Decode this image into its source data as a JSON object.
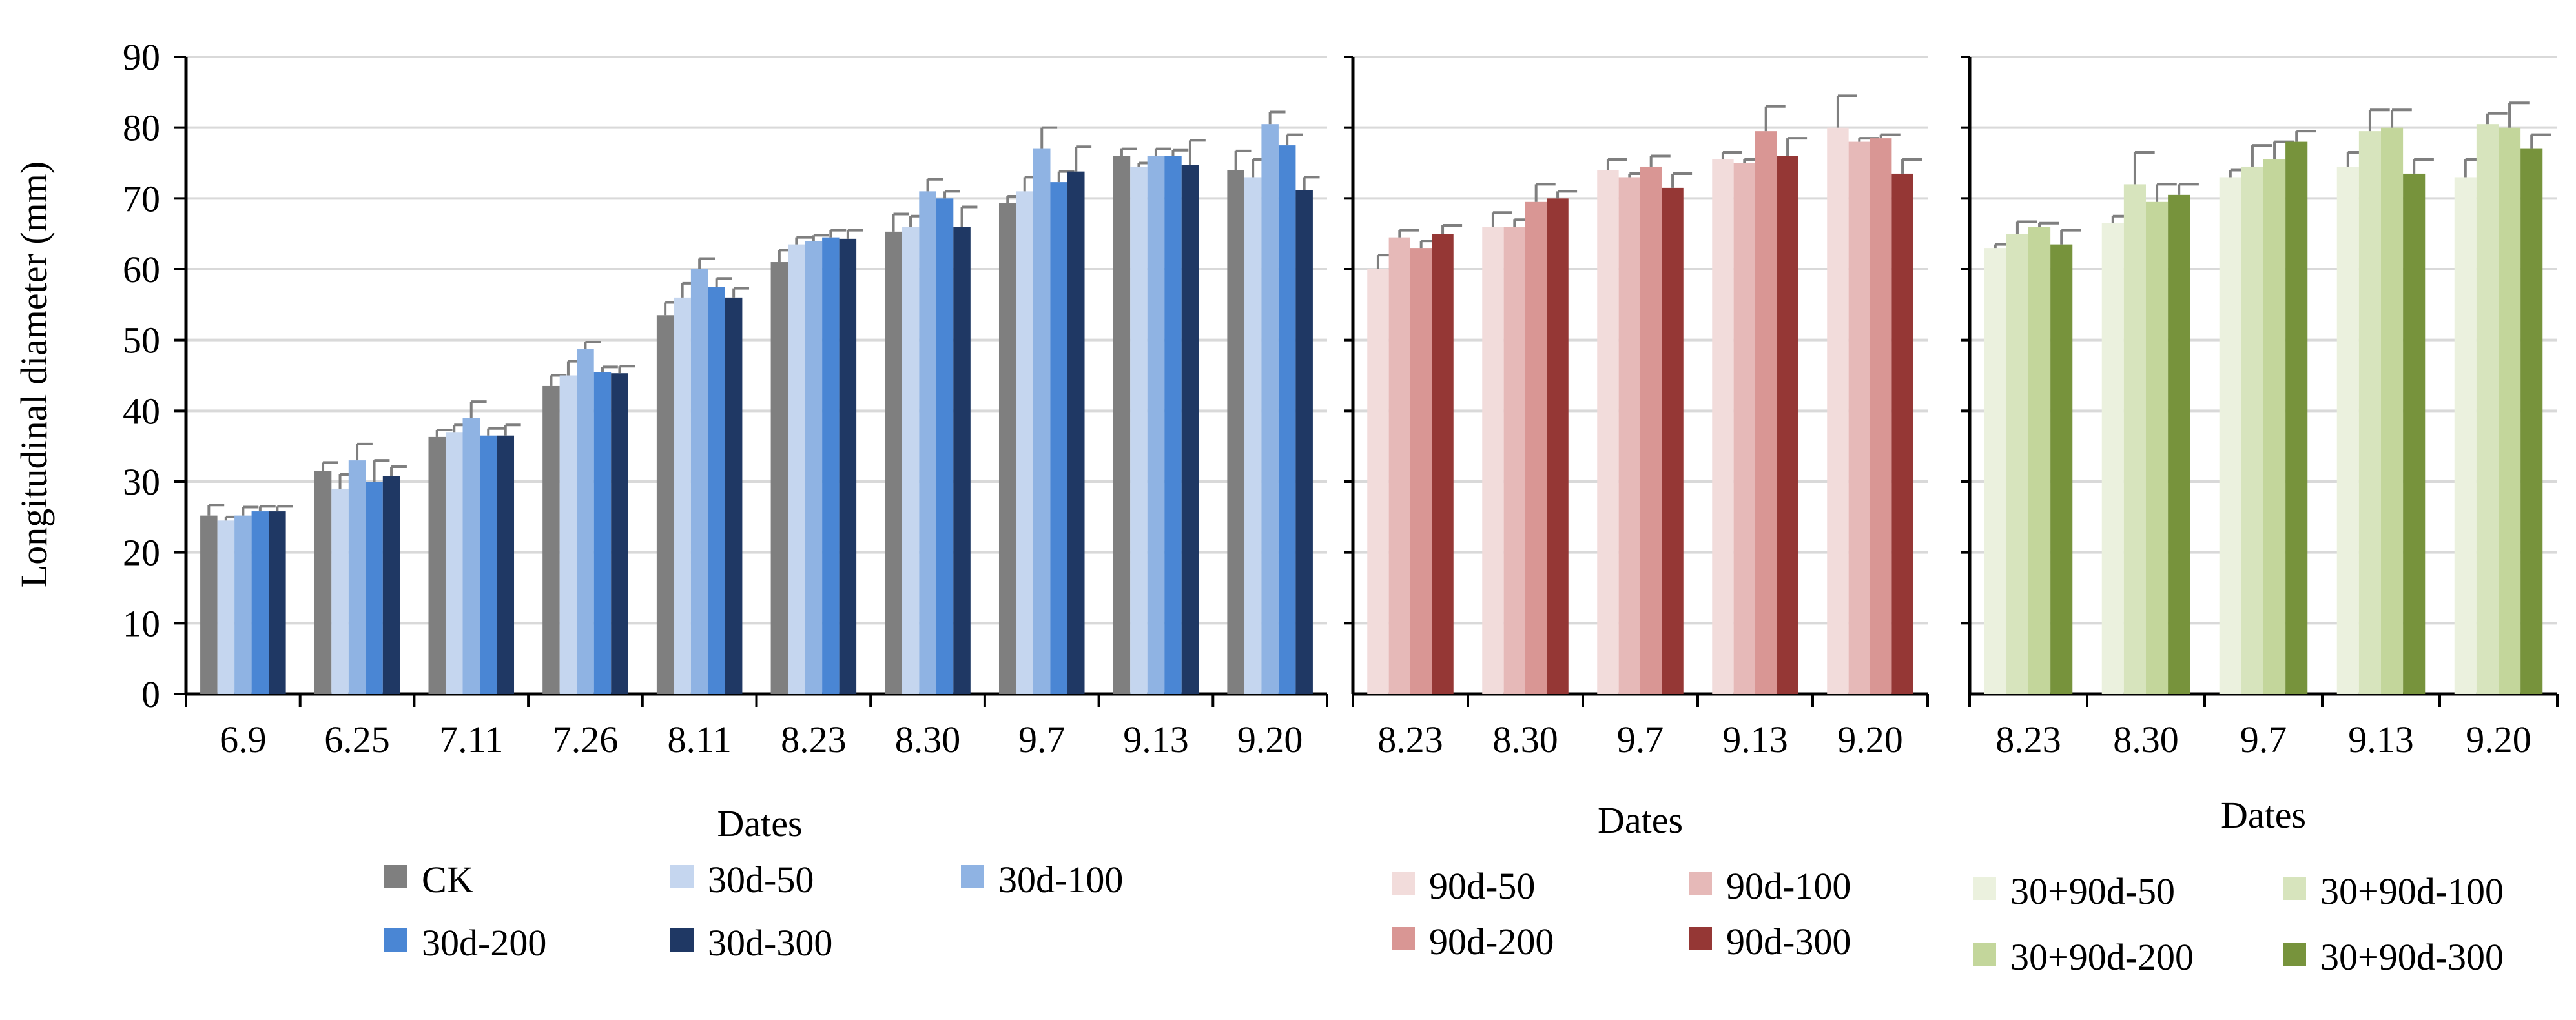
{
  "y_axis_label": "Longitudinal diameter (mm)",
  "chart_data": [
    {
      "type": "bar",
      "title": "",
      "xlabel": "Dates",
      "ylabel": "Longitudinal diameter (mm)",
      "ylim": [
        0,
        90
      ],
      "yticks": [
        0,
        10,
        20,
        30,
        40,
        50,
        60,
        70,
        80,
        90
      ],
      "grid": true,
      "legend_position": "bottom",
      "categories": [
        "6.9",
        "6.25",
        "7.11",
        "7.26",
        "8.11",
        "8.23",
        "8.30",
        "9.7",
        "9.13",
        "9.20"
      ],
      "series": [
        {
          "name": "CK",
          "color": "#7f7f7f",
          "values": [
            25.2,
            31.5,
            36.3,
            43.5,
            53.5,
            61.0,
            65.3,
            69.3,
            76.0,
            74.0
          ],
          "errors": [
            1.5,
            1.2,
            1.0,
            1.5,
            1.8,
            1.7,
            2.5,
            1.0,
            1.0,
            2.7
          ]
        },
        {
          "name": "30d-50",
          "color": "#c5d6ef",
          "values": [
            24.5,
            29.0,
            37.0,
            45.0,
            56.0,
            63.5,
            66.0,
            71.0,
            74.5,
            73.0
          ],
          "errors": [
            0.5,
            2.0,
            1.0,
            2.0,
            2.0,
            1.0,
            1.5,
            2.0,
            0.5,
            2.5
          ]
        },
        {
          "name": "30d-100",
          "color": "#8fb3e3",
          "values": [
            25.2,
            33.0,
            39.0,
            48.7,
            60.0,
            64.0,
            71.0,
            77.0,
            76.0,
            80.5
          ],
          "errors": [
            1.2,
            2.3,
            2.3,
            1.0,
            1.5,
            0.8,
            1.7,
            3.0,
            1.0,
            1.7
          ]
        },
        {
          "name": "30d-200",
          "color": "#4a86d4",
          "values": [
            25.8,
            30.0,
            36.5,
            45.5,
            57.5,
            64.5,
            70.0,
            72.3,
            76.0,
            77.5
          ],
          "errors": [
            0.7,
            3.0,
            1.0,
            0.7,
            1.2,
            1.0,
            1.0,
            1.5,
            0.8,
            1.5
          ]
        },
        {
          "name": "30d-300",
          "color": "#1f3864",
          "values": [
            25.8,
            30.8,
            36.5,
            45.3,
            56.0,
            64.3,
            66.0,
            73.8,
            74.7,
            71.2
          ],
          "errors": [
            0.7,
            1.3,
            1.5,
            1.0,
            1.3,
            1.2,
            2.8,
            3.5,
            3.5,
            1.8
          ]
        }
      ]
    },
    {
      "type": "bar",
      "title": "",
      "xlabel": "Dates",
      "ylim": [
        0,
        90
      ],
      "grid": true,
      "legend_position": "bottom",
      "categories": [
        "8.23",
        "8.30",
        "9.7",
        "9.13",
        "9.20"
      ],
      "series": [
        {
          "name": "90d-50",
          "color": "#f2dcdb",
          "values": [
            60.0,
            66.0,
            74.0,
            75.5,
            80.0
          ],
          "errors": [
            2.0,
            2.0,
            1.5,
            1.0,
            4.5
          ]
        },
        {
          "name": "90d-100",
          "color": "#e6b9b8",
          "values": [
            64.5,
            66.0,
            73.0,
            75.0,
            78.0
          ],
          "errors": [
            1.0,
            1.0,
            0.5,
            0.5,
            0.5
          ]
        },
        {
          "name": "90d-200",
          "color": "#d99694",
          "values": [
            63.0,
            69.5,
            74.5,
            79.5,
            78.5
          ],
          "errors": [
            1.0,
            2.5,
            1.5,
            3.5,
            0.5
          ]
        },
        {
          "name": "90d-300",
          "color": "#953735",
          "values": [
            65.0,
            70.0,
            71.5,
            76.0,
            73.5
          ],
          "errors": [
            1.2,
            1.0,
            2.0,
            2.5,
            2.0
          ]
        }
      ]
    },
    {
      "type": "bar",
      "title": "",
      "xlabel": "Dates",
      "ylim": [
        0,
        90
      ],
      "grid": true,
      "legend_position": "bottom",
      "categories": [
        "8.23",
        "8.30",
        "9.7",
        "9.13",
        "9.20"
      ],
      "series": [
        {
          "name": "30+90d-50",
          "color": "#ebf1de",
          "values": [
            63.0,
            66.5,
            73.0,
            74.5,
            73.0
          ],
          "errors": [
            0.5,
            1.0,
            1.0,
            2.0,
            2.5
          ]
        },
        {
          "name": "30+90d-100",
          "color": "#d7e4bd",
          "values": [
            65.0,
            72.0,
            74.5,
            79.5,
            80.5
          ],
          "errors": [
            1.7,
            4.5,
            3.0,
            3.0,
            1.5
          ]
        },
        {
          "name": "30+90d-200",
          "color": "#c3d69b",
          "values": [
            66.0,
            69.5,
            75.5,
            80.0,
            80.0
          ],
          "errors": [
            0.5,
            2.5,
            2.5,
            2.5,
            3.5
          ]
        },
        {
          "name": "30+90d-300",
          "color": "#77933c",
          "values": [
            63.5,
            70.5,
            78.0,
            73.5,
            77.0
          ],
          "errors": [
            2.0,
            1.5,
            1.5,
            2.0,
            2.0
          ]
        }
      ]
    }
  ]
}
